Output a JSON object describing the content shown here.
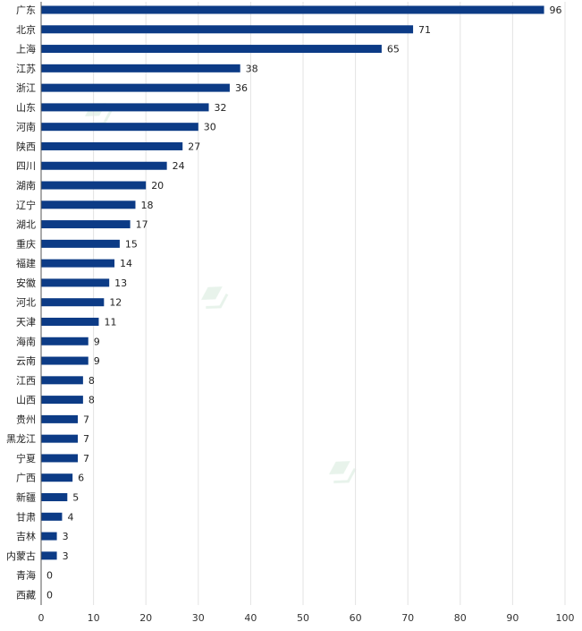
{
  "chart_data": {
    "type": "bar",
    "orientation": "horizontal",
    "categories": [
      "广东",
      "北京",
      "上海",
      "江苏",
      "浙江",
      "山东",
      "河南",
      "陕西",
      "四川",
      "湖南",
      "辽宁",
      "湖北",
      "重庆",
      "福建",
      "安徽",
      "河北",
      "天津",
      "海南",
      "云南",
      "江西",
      "山西",
      "贵州",
      "黑龙江",
      "宁夏",
      "广西",
      "新疆",
      "甘肃",
      "吉林",
      "内蒙古",
      "青海",
      "西藏"
    ],
    "values": [
      96,
      71,
      65,
      38,
      36,
      32,
      30,
      27,
      24,
      20,
      18,
      17,
      15,
      14,
      13,
      12,
      11,
      9,
      9,
      8,
      8,
      7,
      7,
      7,
      6,
      5,
      4,
      3,
      3,
      0,
      0
    ],
    "xlim": [
      0,
      100
    ],
    "xticks": [
      0,
      10,
      20,
      30,
      40,
      50,
      60,
      70,
      80,
      90,
      100
    ],
    "grid": true,
    "bar_color": "#0c3b86",
    "title": "",
    "xlabel": "",
    "ylabel": ""
  }
}
